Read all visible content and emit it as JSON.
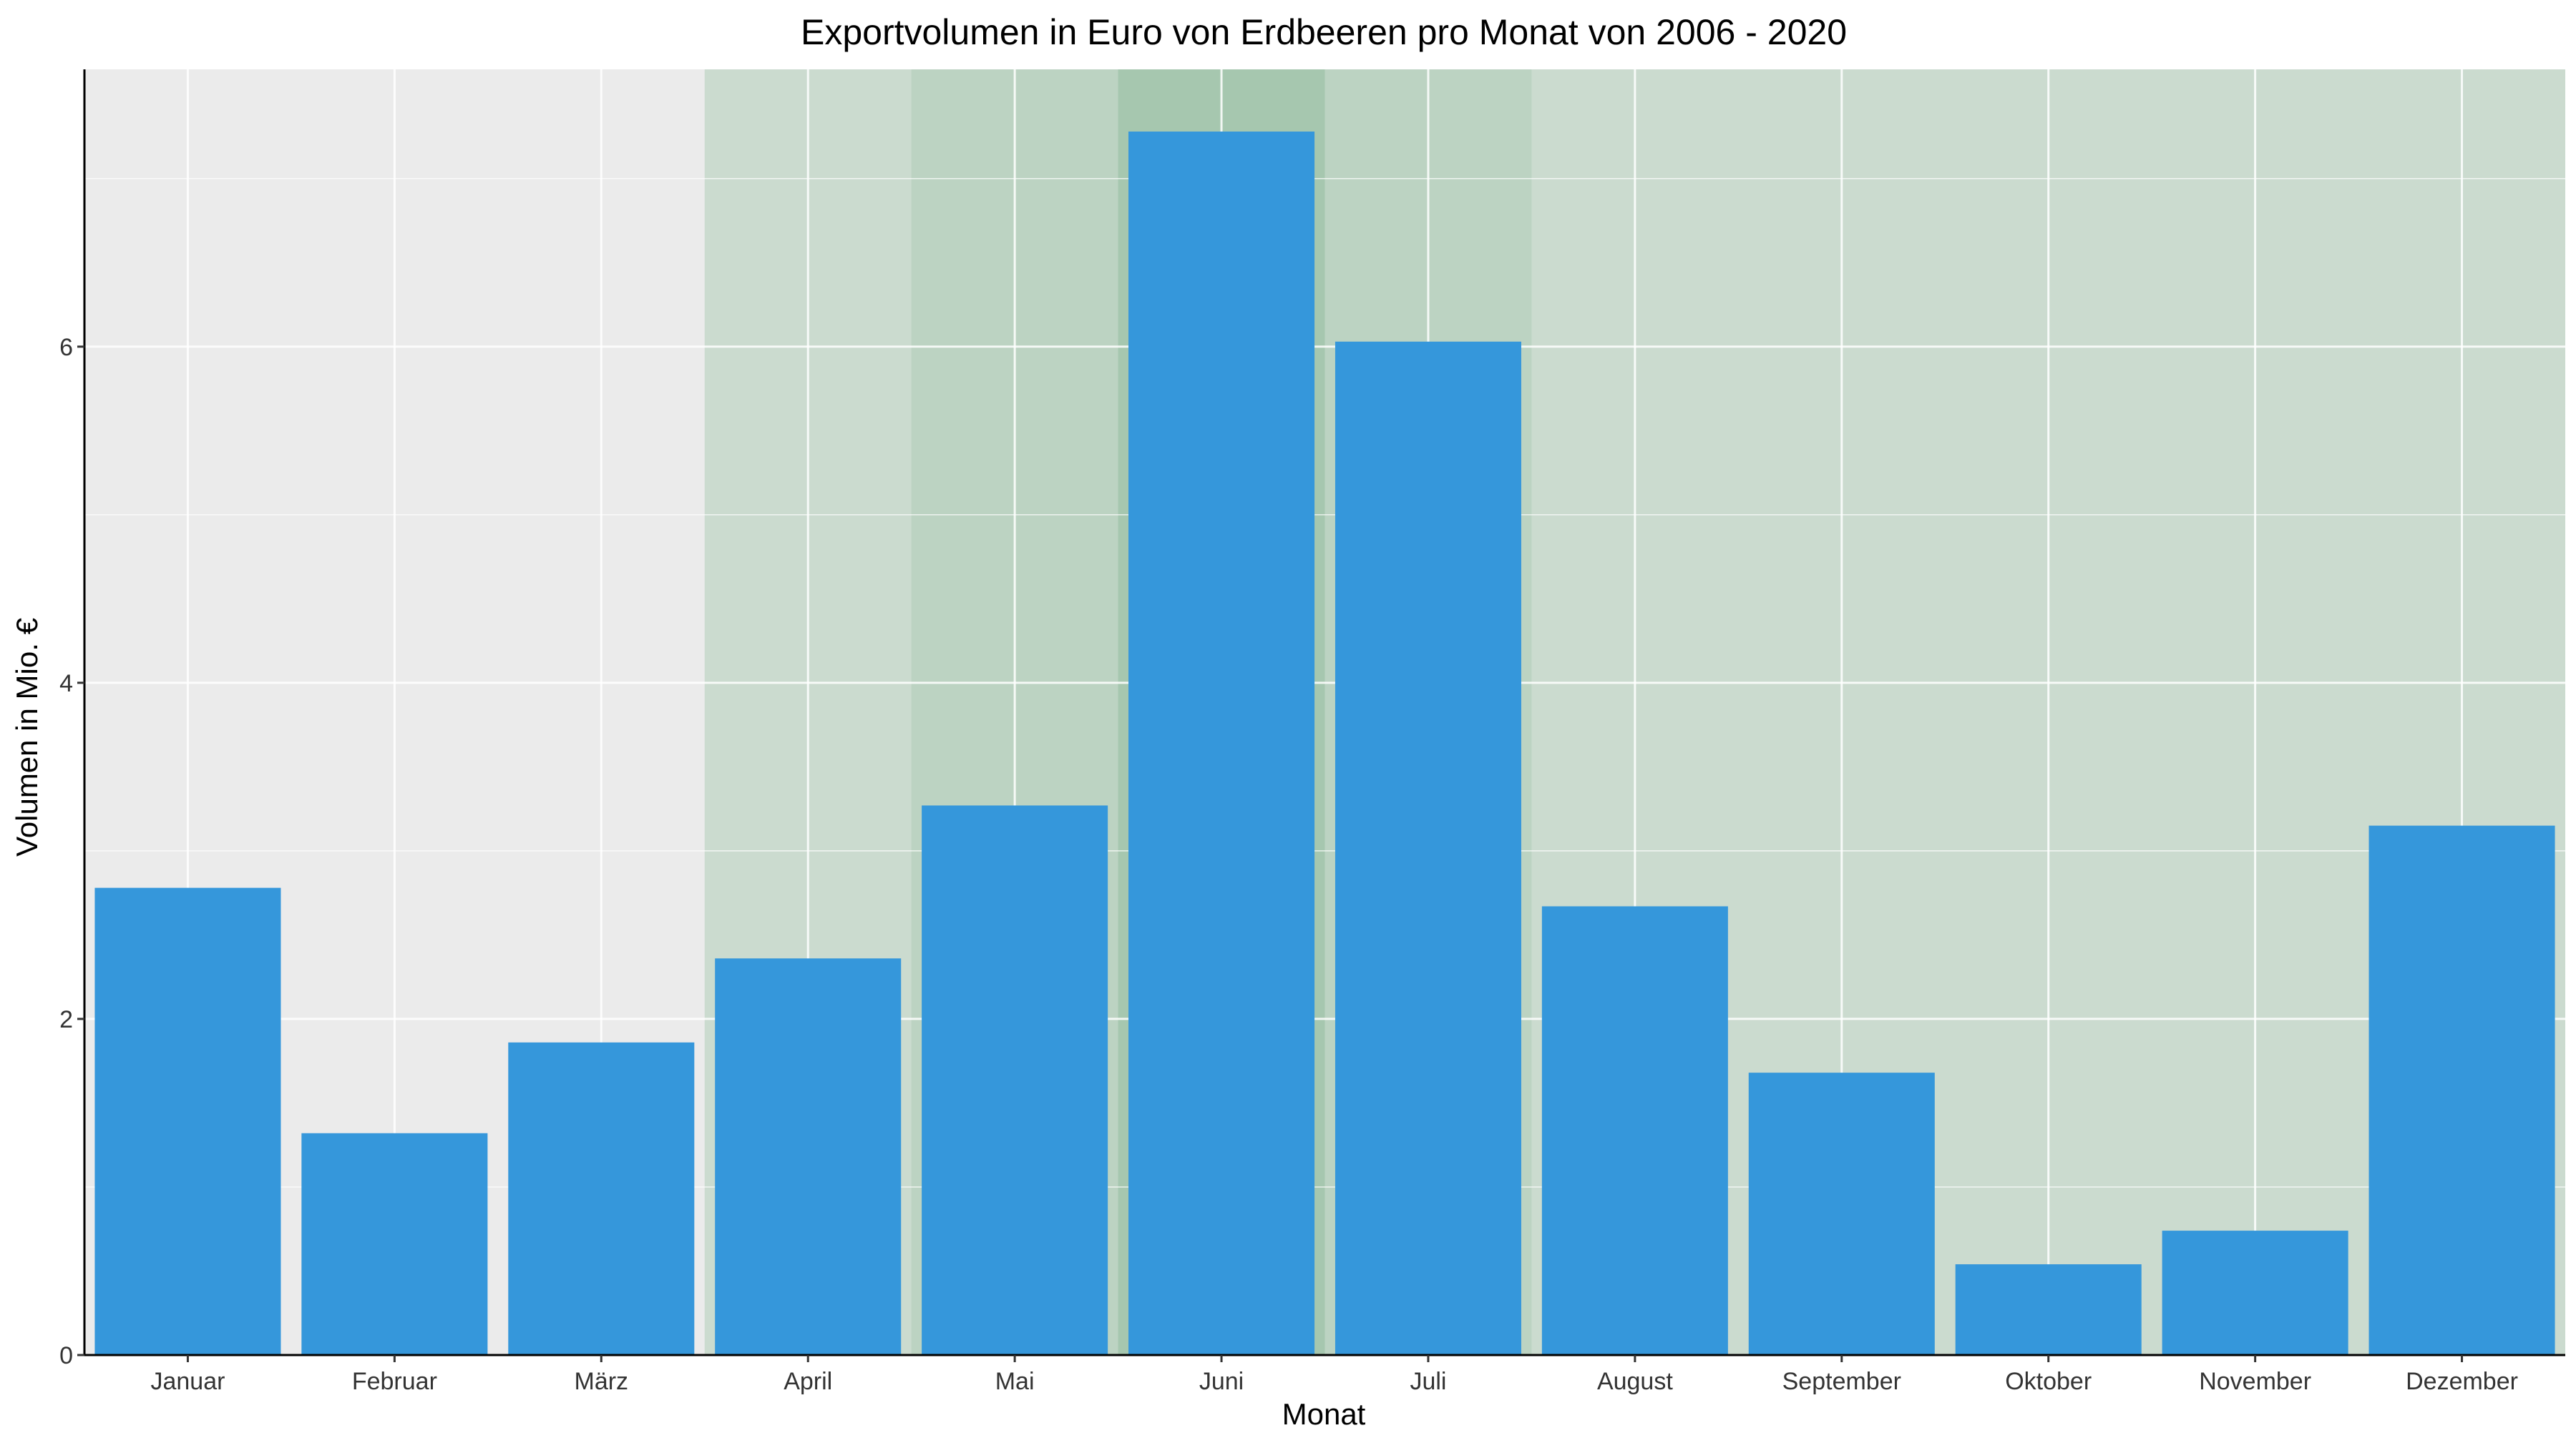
{
  "chart_data": {
    "type": "bar",
    "title": "Exportvolumen in Euro von Erdbeeren pro Monat von 2006 - 2020",
    "xlabel": "Monat",
    "ylabel": "Volumen in Mio. €",
    "categories": [
      "Januar",
      "Februar",
      "März",
      "April",
      "Mai",
      "Juni",
      "Juli",
      "August",
      "September",
      "Oktober",
      "November",
      "Dezember"
    ],
    "values": [
      2.78,
      1.32,
      1.86,
      2.36,
      3.27,
      7.28,
      6.03,
      2.67,
      1.68,
      0.54,
      0.74,
      3.15
    ],
    "ylim": [
      0,
      7.65
    ],
    "yticks": [
      0,
      2,
      4,
      6
    ],
    "grid": true,
    "bar_color": "#3597DB",
    "panel_background": "#EBEBEB",
    "season_highlights": [
      {
        "from": "April",
        "to": "Dezember",
        "color": "#8FBC9B",
        "opacity": 0.35
      },
      {
        "from": "Mai",
        "to": "Juli",
        "color": "#8FBC9B",
        "opacity": 0.25
      },
      {
        "from": "Juni",
        "to": "Juni",
        "color": "#8FBC9B",
        "opacity": 0.5
      }
    ]
  }
}
